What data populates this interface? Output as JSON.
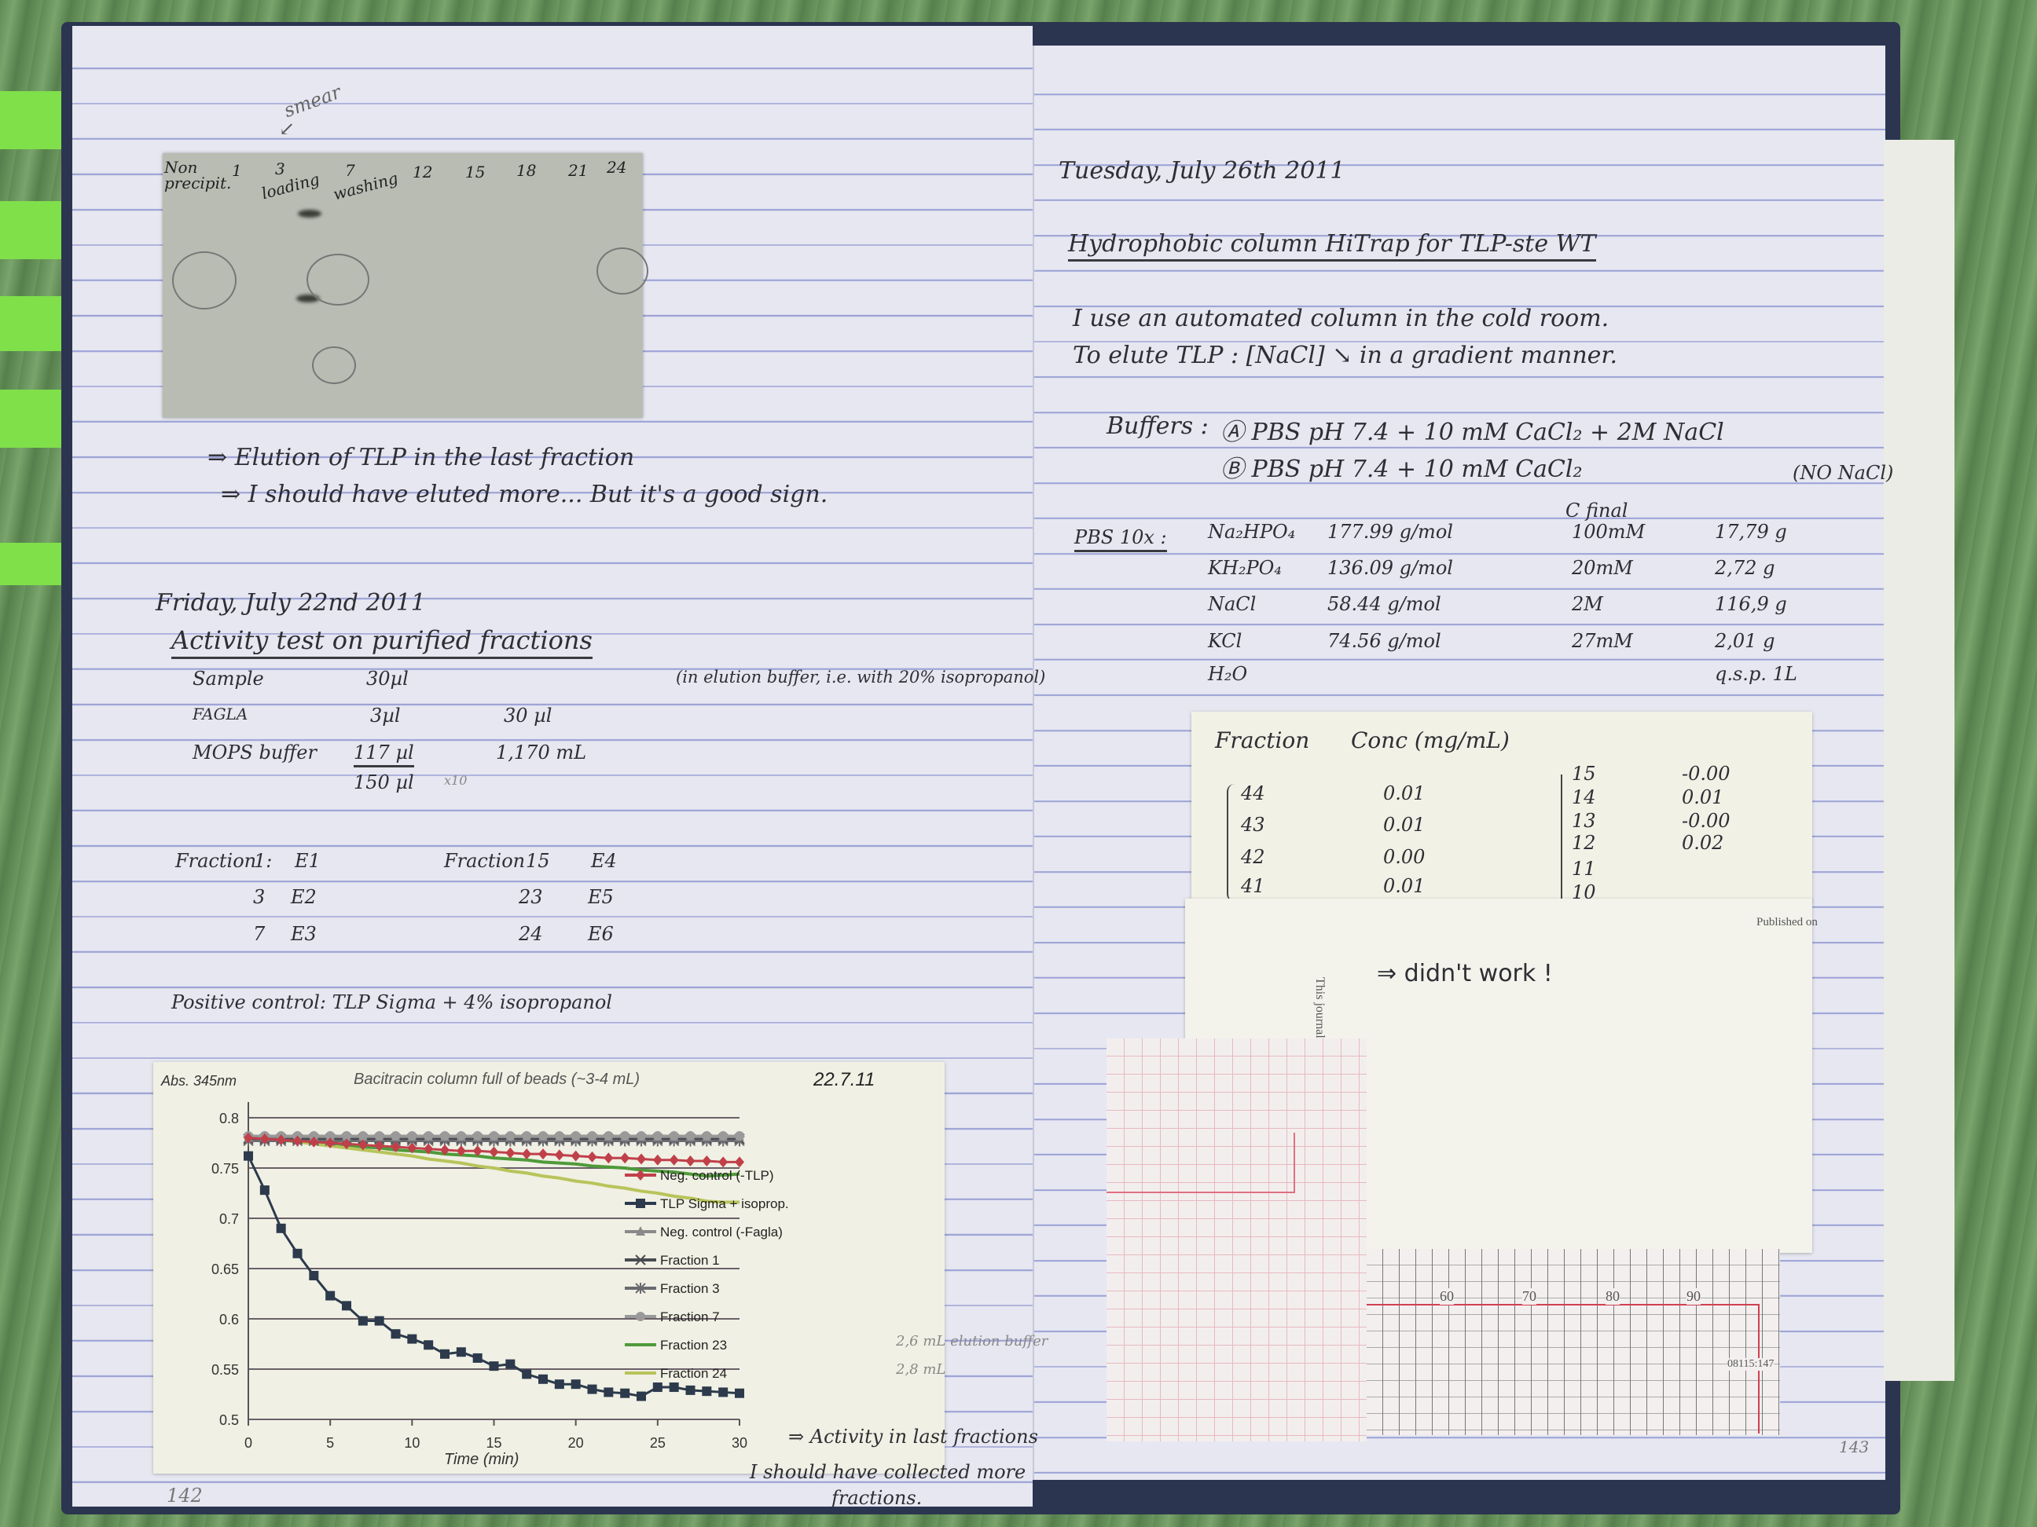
{
  "left_page": {
    "page_number": "142",
    "gel": {
      "annotation": "smear",
      "lanes": [
        "Non precipit.",
        "1",
        "3",
        "7",
        "12",
        "15",
        "18",
        "21",
        "24"
      ],
      "lane_notes": {
        "loading": "loading",
        "washing": "washing"
      }
    },
    "gel_notes": [
      "⇒ Elution of TLP in the last fraction",
      "⇒ I should have eluted more... But it's a good sign."
    ],
    "date": "Friday, July 22nd 2011",
    "title": "Activity test on purified fractions",
    "recipe": {
      "note": "(in elution buffer, i.e. with 20% isopropanol)",
      "rows": [
        {
          "name": "Sample",
          "v1": "30µl",
          "v2": ""
        },
        {
          "name": "FAGLA",
          "v1": "3µl",
          "v2": "30 µl"
        },
        {
          "name": "MOPS buffer",
          "v1": "117 µl",
          "v2": "1,170 mL"
        }
      ],
      "total": "150 µl",
      "multiplier": "x10"
    },
    "fractions": {
      "label": "Fraction",
      "left": [
        {
          "n": "1:",
          "e": "E1"
        },
        {
          "n": "3",
          "e": "E2"
        },
        {
          "n": "7",
          "e": "E3"
        }
      ],
      "right": [
        {
          "n": "15",
          "e": "E4"
        },
        {
          "n": "23",
          "e": "E5"
        },
        {
          "n": "24",
          "e": "E6"
        }
      ]
    },
    "positive_control": "Positive control: TLP Sigma + 4% isopropanol",
    "chart_notes": {
      "date": "22.7.11",
      "fraction23_note": "2,6 mL elution buffer",
      "fraction24_note": "2,8 mL",
      "conclusion": "⇒ Activity in last fractions",
      "conclusion2a": "I should have collected more",
      "conclusion2b": "fractions."
    }
  },
  "right_page": {
    "page_number": "143",
    "date": "Tuesday, July 26th 2011",
    "title": "Hydrophobic column HiTrap for TLP-ste WT",
    "lines": [
      "I use an automated column in the cold room.",
      "To elute TLP : [NaCl] ↘ in a gradient manner."
    ],
    "buffers": {
      "label": "Buffers :",
      "a": "Ⓐ PBS  pH 7.4 + 10 mM CaCl₂ + 2M NaCl",
      "b": "Ⓑ PBS  pH 7.4 + 10 mM CaCl₂",
      "b_note": "(NO NaCl)"
    },
    "pbs": {
      "label": "PBS 10x :",
      "c_header": "C final",
      "rows": [
        {
          "compound": "Na₂HPO₄",
          "mw": "177.99 g/mol",
          "conc": "100mM",
          "mass": "17,79 g"
        },
        {
          "compound": "KH₂PO₄",
          "mw": "136.09 g/mol",
          "conc": "20mM",
          "mass": "2,72 g"
        },
        {
          "compound": "NaCl",
          "mw": "58.44 g/mol",
          "conc": "2M",
          "mass": "116,9 g"
        },
        {
          "compound": "KCl",
          "mw": "74.56 g/mol",
          "conc": "27mM",
          "mass": "2,01 g"
        },
        {
          "compound": "H₂O",
          "mw": "",
          "conc": "",
          "mass": "q.s.p. 1L"
        }
      ]
    },
    "fraction_note": {
      "headers": [
        "Fraction",
        "Conc (mg/mL)"
      ],
      "left_rows": [
        {
          "f": "44",
          "c": "0.01"
        },
        {
          "f": "43",
          "c": "0.01"
        },
        {
          "f": "42",
          "c": "0.00"
        },
        {
          "f": "41",
          "c": "0.01"
        }
      ],
      "right_rows": [
        {
          "f": "15",
          "c": "-0.00"
        },
        {
          "f": "14",
          "c": "0.01"
        },
        {
          "f": "13",
          "c": "-0.00"
        },
        {
          "f": "12",
          "c": "0.02"
        },
        {
          "f": "11",
          "c": ""
        },
        {
          "f": "10",
          "c": ""
        }
      ]
    },
    "article_note": {
      "printed_side": "This journal",
      "printed_top": "Published on",
      "handwritten": "⇒ didn't work !"
    },
    "recorder": {
      "scale": [
        "60",
        "70",
        "80",
        "90"
      ],
      "code": "08115:147"
    }
  },
  "colors": {
    "paper": "#e6e7f1",
    "rule": "#9da3d6",
    "tab_green": "#7fe04a",
    "ink": "#2e2e34"
  },
  "chart_data": {
    "type": "line",
    "title": "Bacitracin column full of beads (~3-4 mL)",
    "xlabel": "Time (min)",
    "ylabel": "Abs. 345nm",
    "xlim": [
      0,
      30
    ],
    "ylim": [
      0.5,
      0.8
    ],
    "xticks": [
      0,
      5,
      10,
      15,
      20,
      25,
      30
    ],
    "yticks": [
      0.5,
      0.55,
      0.6,
      0.65,
      0.7,
      0.75,
      0.8
    ],
    "ytick_labels": [
      "0.5",
      "0.55",
      "0.6",
      "0.65",
      "0.7",
      "0.75",
      "0.8"
    ],
    "grid": true,
    "legend_position": "right",
    "x": [
      0,
      1,
      2,
      3,
      4,
      5,
      6,
      7,
      8,
      9,
      10,
      11,
      12,
      13,
      14,
      15,
      16,
      17,
      18,
      19,
      20,
      21,
      22,
      23,
      24,
      25,
      26,
      27,
      28,
      29,
      30
    ],
    "series": [
      {
        "name": "Neg. control (-TLP)",
        "color": "#c0404a",
        "marker": "diamond",
        "values": [
          0.78,
          0.779,
          0.778,
          0.777,
          0.776,
          0.775,
          0.774,
          0.773,
          0.772,
          0.771,
          0.77,
          0.769,
          0.768,
          0.767,
          0.767,
          0.766,
          0.765,
          0.764,
          0.764,
          0.763,
          0.762,
          0.761,
          0.76,
          0.76,
          0.759,
          0.758,
          0.758,
          0.757,
          0.757,
          0.756,
          0.756
        ]
      },
      {
        "name": "TLP Sigma + isoprop.",
        "color": "#2c3a4c",
        "marker": "square",
        "values": [
          0.762,
          0.728,
          0.69,
          0.665,
          0.643,
          0.623,
          0.613,
          0.598,
          0.598,
          0.585,
          0.58,
          0.574,
          0.565,
          0.567,
          0.561,
          0.553,
          0.555,
          0.545,
          0.54,
          0.535,
          0.535,
          0.53,
          0.527,
          0.526,
          0.523,
          0.532,
          0.532,
          0.529,
          0.528,
          0.527,
          0.526
        ]
      },
      {
        "name": "Neg. control (-Fagla)",
        "color": "#8a8a8a",
        "marker": "triangle",
        "values": [
          0.78,
          0.781,
          0.781,
          0.781,
          0.781,
          0.781,
          0.781,
          0.781,
          0.781,
          0.781,
          0.781,
          0.781,
          0.781,
          0.781,
          0.781,
          0.781,
          0.781,
          0.781,
          0.781,
          0.781,
          0.781,
          0.781,
          0.781,
          0.781,
          0.781,
          0.781,
          0.781,
          0.781,
          0.781,
          0.781,
          0.781
        ]
      },
      {
        "name": "Fraction 1",
        "color": "#4a4a50",
        "marker": "x",
        "values": [
          0.779,
          0.779,
          0.779,
          0.779,
          0.779,
          0.779,
          0.779,
          0.779,
          0.779,
          0.779,
          0.779,
          0.779,
          0.779,
          0.779,
          0.779,
          0.779,
          0.779,
          0.779,
          0.779,
          0.779,
          0.779,
          0.779,
          0.779,
          0.779,
          0.779,
          0.779,
          0.779,
          0.779,
          0.779,
          0.779,
          0.779
        ]
      },
      {
        "name": "Fraction 3",
        "color": "#6a6a70",
        "marker": "star",
        "values": [
          0.777,
          0.777,
          0.777,
          0.777,
          0.777,
          0.777,
          0.777,
          0.777,
          0.777,
          0.777,
          0.777,
          0.777,
          0.777,
          0.777,
          0.777,
          0.777,
          0.777,
          0.777,
          0.777,
          0.777,
          0.777,
          0.777,
          0.777,
          0.777,
          0.777,
          0.777,
          0.777,
          0.777,
          0.777,
          0.777,
          0.777
        ]
      },
      {
        "name": "Fraction 7",
        "color": "#9a9a9a",
        "marker": "circle",
        "values": [
          0.782,
          0.782,
          0.782,
          0.782,
          0.782,
          0.782,
          0.782,
          0.782,
          0.782,
          0.782,
          0.782,
          0.782,
          0.782,
          0.782,
          0.782,
          0.782,
          0.782,
          0.782,
          0.782,
          0.782,
          0.782,
          0.782,
          0.782,
          0.782,
          0.782,
          0.782,
          0.782,
          0.782,
          0.782,
          0.782,
          0.782
        ]
      },
      {
        "name": "Fraction 23",
        "color": "#4f9a3a",
        "marker": "none",
        "values": [
          0.78,
          0.779,
          0.778,
          0.776,
          0.775,
          0.774,
          0.772,
          0.771,
          0.77,
          0.768,
          0.767,
          0.766,
          0.764,
          0.763,
          0.762,
          0.76,
          0.759,
          0.758,
          0.756,
          0.755,
          0.754,
          0.752,
          0.751,
          0.75,
          0.748,
          0.747,
          0.746,
          0.744,
          0.742,
          0.743,
          0.744
        ]
      },
      {
        "name": "Fraction 24",
        "color": "#b8c45a",
        "marker": "none",
        "values": [
          0.78,
          0.779,
          0.778,
          0.776,
          0.774,
          0.772,
          0.77,
          0.768,
          0.766,
          0.764,
          0.762,
          0.759,
          0.757,
          0.755,
          0.752,
          0.75,
          0.747,
          0.745,
          0.742,
          0.74,
          0.737,
          0.735,
          0.732,
          0.73,
          0.727,
          0.725,
          0.722,
          0.72,
          0.717,
          0.716,
          0.716
        ]
      }
    ]
  }
}
